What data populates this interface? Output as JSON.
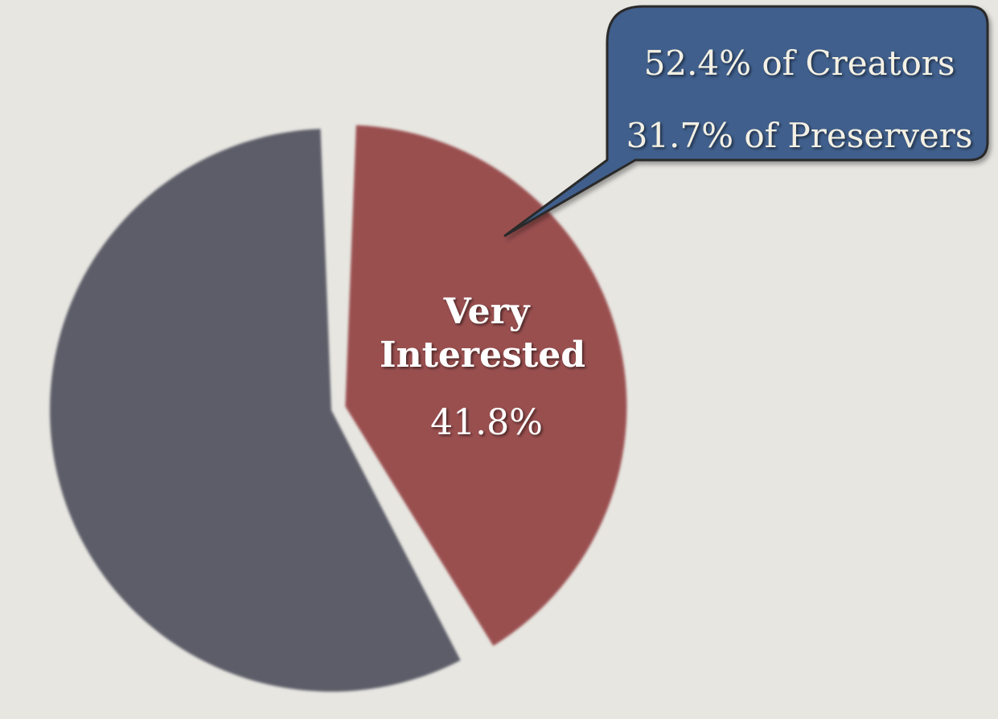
{
  "colors": {
    "background": "#e7e6e1",
    "very_interested": "#9a4f4f",
    "other": "#5d5d69",
    "callout_fill": "#3f5f8c",
    "callout_stroke": "#2a2a2a",
    "callout_text": "#f4f1e4"
  },
  "chart_data": {
    "type": "pie",
    "slices": [
      {
        "label": "Very Interested",
        "label_lines": [
          "Very",
          "Interested"
        ],
        "value": 41.8,
        "value_label": "41.8%",
        "color": "#9a4f4f"
      },
      {
        "label": "",
        "value": 58.2,
        "value_label": "",
        "color": "#5d5d69"
      }
    ],
    "annotation": {
      "lines": [
        "52.4% of Creators",
        "31.7% of Preservers"
      ]
    },
    "legend": "none",
    "title": ""
  }
}
